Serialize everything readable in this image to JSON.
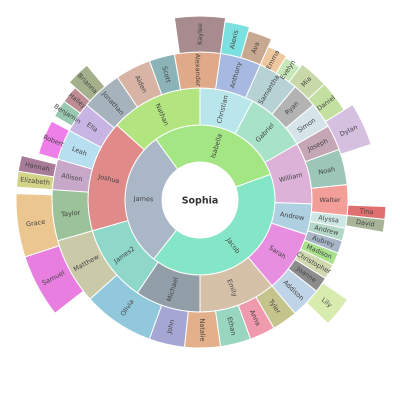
{
  "chart_data": {
    "type": "sunburst",
    "title": "",
    "root": {
      "name": "Sophia",
      "color": "#ffffff"
    },
    "rings": [
      [
        {
          "name": "James",
          "start": 218,
          "end": 324,
          "color": "#a9b7c6"
        },
        {
          "name": "Isabella",
          "start": 324,
          "end": 430,
          "color": "#a3e683"
        },
        {
          "name": "Jacob",
          "start": 430,
          "end": 578,
          "color": "#84e6c6"
        }
      ],
      [
        {
          "name": "Joshua",
          "start": 218,
          "end": 270,
          "color": "#e08a8a"
        },
        {
          "name": "Nathan",
          "start": 270,
          "end": 324,
          "color": "#b2e57f"
        },
        {
          "name": "Christian",
          "start": 324,
          "end": 358,
          "color": "#b9e6ea"
        },
        {
          "name": "Gabriel",
          "start": 358,
          "end": 394,
          "color": "#a8e2c8"
        },
        {
          "name": "William",
          "start": 394,
          "end": 430,
          "color": "#dcb2d8"
        },
        {
          "name": "Andrew",
          "start": 430,
          "end": 450,
          "color": "#aed0e0"
        },
        {
          "name": "Sarah",
          "start": 450,
          "end": 490,
          "color": "#e88ee0"
        },
        {
          "name": "Emily",
          "start": 490,
          "end": 542,
          "color": "#d5c0a8"
        },
        {
          "name": "Michael",
          "start": 542,
          "end": 578,
          "color": "#919ea8"
        }
      ],
      [
        {
          "name": "Jonathan",
          "start": 284,
          "end": 300,
          "color": "#a6b3bc"
        },
        {
          "name": "Olivia",
          "start": 286,
          "end": 300,
          "color": "#ffffff"
        },
        {
          "name": "Ella",
          "start": 258,
          "end": 266,
          "color": "#c8b5e4"
        },
        {
          "name": "Leah",
          "start": 248,
          "end": 258,
          "color": "#b7dff0"
        },
        {
          "name": "Allison",
          "start": 238,
          "end": 248,
          "color": "#c7a8c8"
        },
        {
          "name": "Taylor",
          "start": 218,
          "end": 238,
          "color": "#9cc29a"
        },
        {
          "name": "Matthew",
          "start": 198,
          "end": 218,
          "color": "#cacaa8"
        },
        {
          "name": "Olivia",
          "start": 156,
          "end": 198,
          "color": "#92c8dc"
        },
        {
          "name": "John",
          "start": 150,
          "end": 166,
          "color": "#a6a6d4"
        },
        {
          "name": "Natalie",
          "start": 136,
          "end": 150,
          "color": "#e4b08c"
        },
        {
          "name": "Ethan",
          "start": 122,
          "end": 136,
          "color": "#98d6c0"
        },
        {
          "name": "Anna",
          "start": 112,
          "end": 122,
          "color": "#f09aae"
        },
        {
          "name": "Addison",
          "start": 100,
          "end": 112,
          "color": "#c0d4e8"
        },
        {
          "name": "Tyler",
          "start": 112,
          "end": 122,
          "color": "#c4c48c"
        },
        {
          "name": "Joanne",
          "start": 122,
          "end": 128,
          "color": "#8c8c8c"
        },
        {
          "name": "Nathan",
          "start": 336,
          "end": 376,
          "color": "#b2e57f"
        },
        {
          "name": "Anthony",
          "start": 2,
          "end": 14,
          "color": "#a7b9e0"
        },
        {
          "name": "Samantha",
          "start": 14,
          "end": 28,
          "color": "#b6d2d4"
        },
        {
          "name": "Ryan",
          "start": 28,
          "end": 36,
          "color": "#b3b3b3"
        },
        {
          "name": "Simon",
          "start": 36,
          "end": 44,
          "color": "#d4e4e8"
        },
        {
          "name": "Joseph",
          "start": 44,
          "end": 52,
          "color": "#c4a6b4"
        },
        {
          "name": "Noah",
          "start": 52,
          "end": 64,
          "color": "#9cc6b8"
        },
        {
          "name": "Walter",
          "start": 74,
          "end": 86,
          "color": "#f49e9a"
        },
        {
          "name": "Alyssa",
          "start": 86,
          "end": 92,
          "color": "#cde8e4"
        },
        {
          "name": "Andrew",
          "start": 92,
          "end": 96,
          "color": "#b4d8c8"
        },
        {
          "name": "Aubrey",
          "start": 96,
          "end": 100,
          "color": "#a6b6c6"
        },
        {
          "name": "Madison",
          "start": 100,
          "end": 104,
          "color": "#a8e08c"
        },
        {
          "name": "Christopher",
          "start": 104,
          "end": 108,
          "color": "#d0d8b0"
        },
        {
          "name": "Alexander",
          "start": 330,
          "end": 346,
          "color": "#e0aa8a"
        },
        {
          "name": "Scott",
          "start": 316,
          "end": 324,
          "color": "#8cb4b8"
        },
        {
          "name": "Aiden",
          "start": 306,
          "end": 316,
          "color": "#d8b4a4"
        },
        {
          "name": "Ava",
          "start": 28,
          "end": 36,
          "color": "#c8a890"
        },
        {
          "name": "Emma",
          "start": 36,
          "end": 42,
          "color": "#f0c8a0"
        }
      ]
    ],
    "labels": {
      "ring1": [
        "James",
        "Isabella",
        "Jacob"
      ],
      "ring2": [
        "Joshua",
        "Nathan",
        "Christian",
        "Gabriel",
        "William",
        "Andrew",
        "Sarah",
        "Emily",
        "Michael"
      ]
    },
    "outer": [
      {
        "name": "Kaylee",
        "color": "#a88b8f"
      },
      {
        "name": "Alexis",
        "color": "#7ae0e0"
      },
      {
        "name": "Ava",
        "color": "#c8a890"
      },
      {
        "name": "Emma",
        "color": "#f0c8a0"
      },
      {
        "name": "Evelyn",
        "color": "#c6e8b8"
      },
      {
        "name": "Mia",
        "color": "#c8d8a8"
      },
      {
        "name": "Daniel",
        "color": "#c4e0a0"
      },
      {
        "name": "Dylan",
        "color": "#d6c0e0"
      },
      {
        "name": "Tina",
        "color": "#e07070"
      },
      {
        "name": "David",
        "color": "#a8b498"
      },
      {
        "name": "Lily",
        "color": "#d8ecb0"
      },
      {
        "name": "Samuel",
        "color": "#e87ee0"
      },
      {
        "name": "Grace",
        "color": "#ecc690"
      },
      {
        "name": "Elizabeth",
        "color": "#d4d488"
      },
      {
        "name": "Hannah",
        "color": "#a87c98"
      },
      {
        "name": "Robert",
        "color": "#ee7ee8"
      },
      {
        "name": "Benjamin",
        "color": "#98c8b0"
      },
      {
        "name": "Hailey",
        "color": "#c08c94"
      },
      {
        "name": "Brianna",
        "color": "#a4b08c"
      }
    ]
  }
}
